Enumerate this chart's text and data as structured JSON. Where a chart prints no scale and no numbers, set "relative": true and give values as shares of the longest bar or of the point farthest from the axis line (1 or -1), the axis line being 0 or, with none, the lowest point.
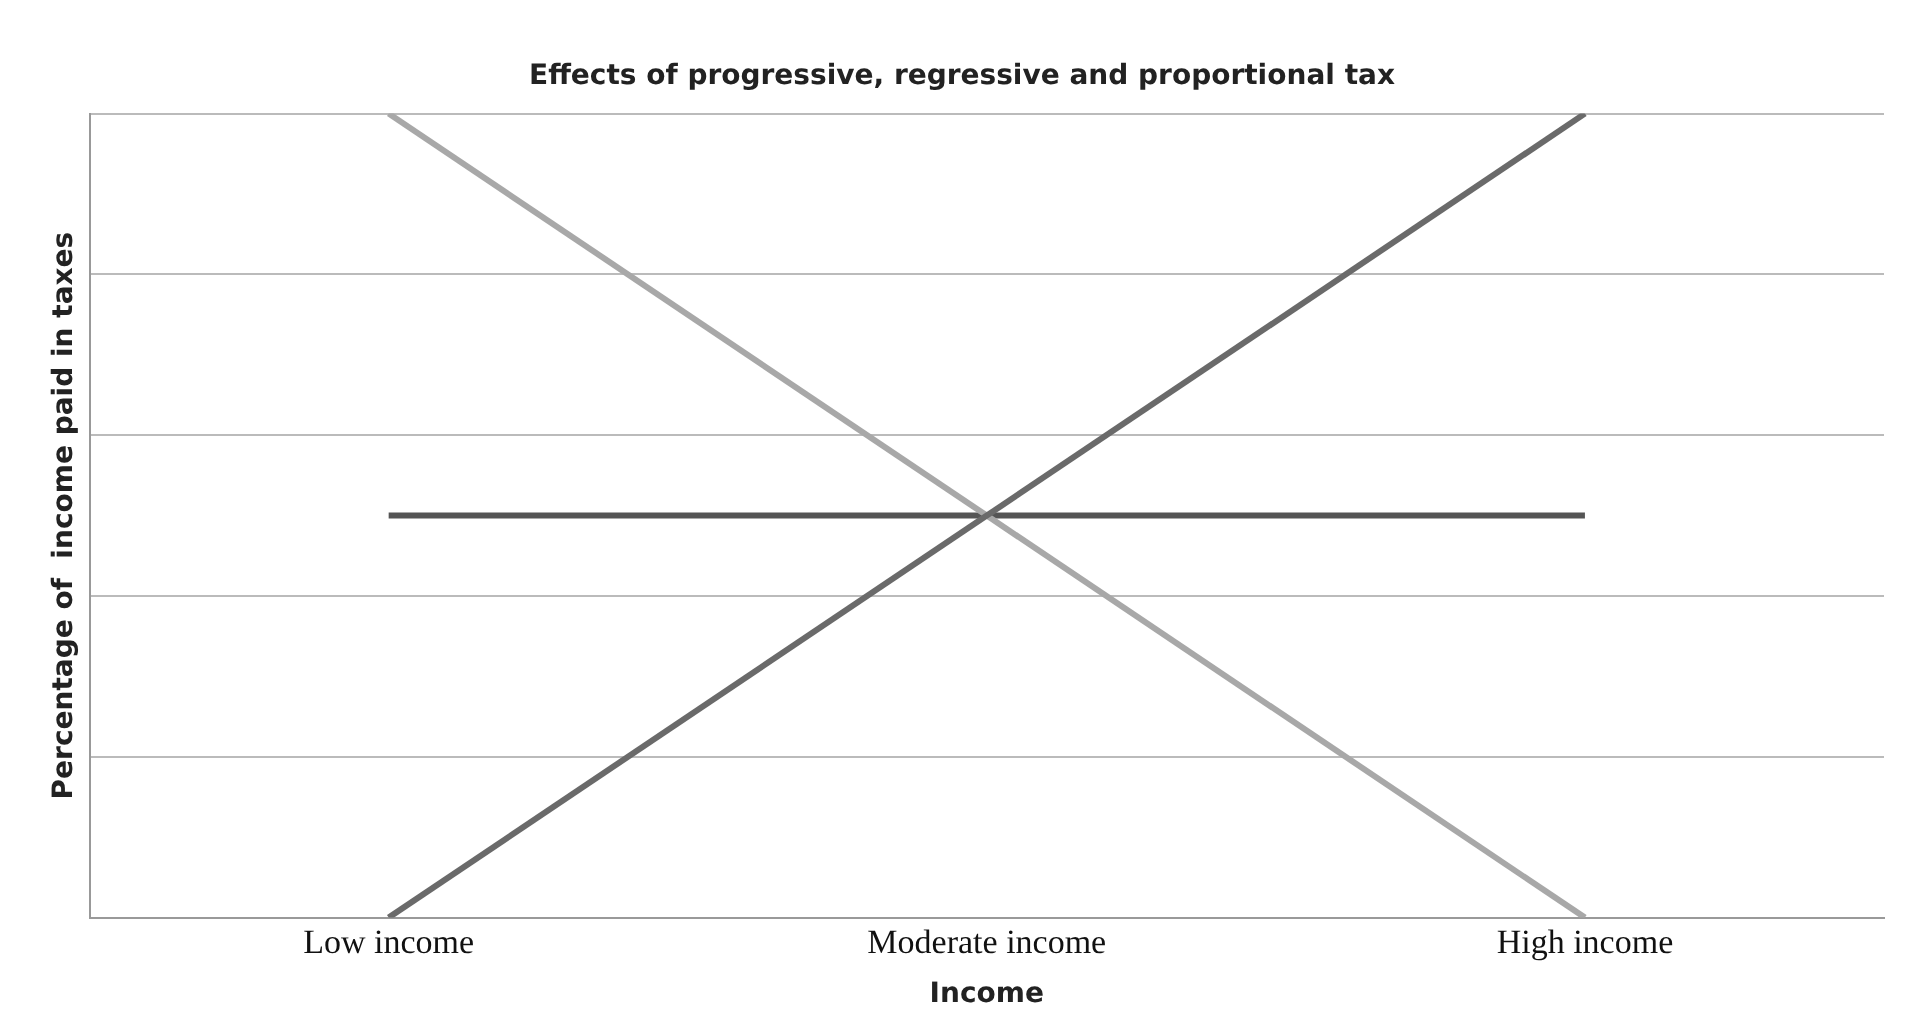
{
  "chart_data": {
    "type": "line",
    "title": "Effects of progressive, regressive and proportional tax",
    "xlabel": "Income",
    "ylabel": "Percentage of  income paid in taxes",
    "relative": true,
    "grid": "y",
    "legend": false,
    "marker": "none",
    "line_style": "solid",
    "categories": [
      "Low income",
      "Moderate income",
      "High income"
    ],
    "series": [
      {
        "color": "#6a6a6a",
        "values": [
          0,
          0.5,
          1
        ]
      },
      {
        "color": "#a8a8a8",
        "values": [
          1,
          0.5,
          0
        ]
      },
      {
        "color": "#555555",
        "values": [
          0.5,
          0.5,
          0.5
        ]
      }
    ]
  }
}
